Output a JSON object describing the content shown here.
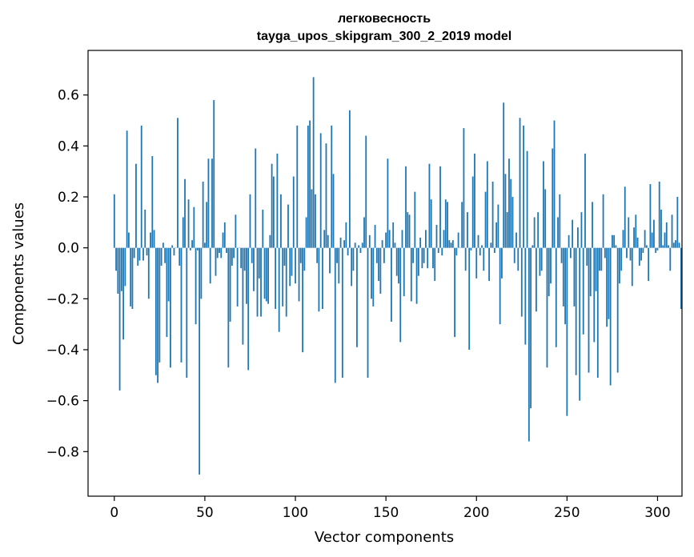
{
  "chart_data": {
    "type": "bar",
    "title": "легковесность",
    "subtitle": "tayga_upos_skipgram_300_2_2019 model",
    "xlabel": "Vector components",
    "ylabel": "Components values",
    "xlim": [
      -14.5,
      313.5
    ],
    "ylim": [
      -0.975,
      0.775
    ],
    "xticks": [
      0,
      50,
      100,
      150,
      200,
      250,
      300
    ],
    "xtick_labels": [
      "0",
      "50",
      "100",
      "150",
      "200",
      "250",
      "300"
    ],
    "yticks": [
      -0.8,
      -0.6,
      -0.4,
      -0.2,
      0.0,
      0.2,
      0.4,
      0.6
    ],
    "ytick_labels": [
      "−0.8",
      "−0.6",
      "−0.4",
      "−0.2",
      "0.0",
      "0.2",
      "0.4",
      "0.6"
    ],
    "bar_color": "#1f77b4",
    "grid": false,
    "values": [
      0.21,
      -0.09,
      -0.18,
      -0.56,
      -0.17,
      -0.36,
      -0.15,
      0.46,
      0.06,
      -0.23,
      -0.24,
      -0.04,
      0.33,
      -0.07,
      -0.05,
      0.48,
      -0.05,
      0.15,
      -0.03,
      -0.2,
      0.06,
      0.36,
      0.07,
      -0.5,
      -0.53,
      -0.45,
      -0.07,
      0.02,
      -0.06,
      -0.35,
      -0.21,
      -0.47,
      0.01,
      -0.03,
      0.0,
      0.51,
      -0.07,
      -0.45,
      0.12,
      0.27,
      -0.51,
      0.19,
      -0.01,
      0.03,
      0.16,
      -0.3,
      -0.01,
      -0.89,
      -0.2,
      0.26,
      0.02,
      0.18,
      0.35,
      -0.14,
      0.35,
      0.58,
      -0.11,
      -0.04,
      -0.02,
      -0.04,
      0.06,
      0.1,
      -0.02,
      -0.47,
      -0.29,
      -0.07,
      -0.04,
      0.13,
      -0.23,
      0.0,
      -0.08,
      -0.38,
      -0.09,
      -0.22,
      -0.48,
      0.21,
      -0.06,
      -0.17,
      0.39,
      -0.27,
      -0.12,
      -0.27,
      0.15,
      -0.2,
      -0.21,
      -0.22,
      0.05,
      0.33,
      0.28,
      -0.24,
      0.37,
      -0.33,
      0.21,
      -0.23,
      -0.07,
      -0.27,
      0.17,
      -0.15,
      -0.11,
      0.28,
      -0.14,
      0.48,
      -0.21,
      -0.06,
      -0.41,
      -0.09,
      0.12,
      0.48,
      0.5,
      0.23,
      0.67,
      0.21,
      -0.06,
      -0.25,
      0.45,
      -0.24,
      0.07,
      0.41,
      0.05,
      -0.1,
      0.48,
      0.29,
      -0.53,
      -0.06,
      -0.14,
      0.04,
      -0.51,
      0.03,
      0.1,
      -0.03,
      0.54,
      -0.15,
      -0.09,
      0.02,
      -0.39,
      0.01,
      -0.02,
      0.02,
      0.12,
      0.44,
      -0.51,
      0.05,
      -0.2,
      -0.23,
      0.09,
      -0.06,
      -0.13,
      -0.18,
      0.03,
      -0.06,
      0.06,
      0.35,
      0.07,
      -0.29,
      0.1,
      0.02,
      -0.11,
      -0.14,
      -0.37,
      0.07,
      -0.19,
      0.32,
      0.14,
      0.13,
      -0.21,
      -0.06,
      0.22,
      -0.22,
      -0.11,
      0.04,
      -0.08,
      -0.06,
      0.07,
      -0.08,
      0.33,
      0.19,
      -0.08,
      -0.13,
      0.09,
      -0.02,
      0.32,
      -0.03,
      0.07,
      0.19,
      0.18,
      0.03,
      0.02,
      0.03,
      -0.35,
      -0.03,
      0.06,
      0.0,
      0.18,
      0.47,
      -0.09,
      0.14,
      -0.4,
      -0.01,
      0.28,
      0.37,
      -0.12,
      0.05,
      -0.03,
      0.01,
      -0.09,
      0.22,
      0.34,
      -0.13,
      0.02,
      0.26,
      -0.02,
      0.1,
      0.17,
      -0.3,
      -0.12,
      0.57,
      0.29,
      0.14,
      0.35,
      0.27,
      0.2,
      -0.06,
      0.06,
      -0.09,
      0.51,
      -0.27,
      0.48,
      -0.38,
      0.38,
      -0.76,
      -0.63,
      0.01,
      0.12,
      -0.25,
      0.14,
      -0.11,
      -0.09,
      0.34,
      0.23,
      -0.47,
      -0.19,
      -0.14,
      0.39,
      0.5,
      -0.39,
      0.12,
      0.21,
      -0.06,
      -0.23,
      -0.3,
      -0.66,
      0.05,
      -0.04,
      0.11,
      -0.23,
      -0.5,
      0.08,
      -0.6,
      0.14,
      -0.34,
      0.37,
      -0.07,
      -0.49,
      -0.19,
      0.18,
      -0.37,
      -0.17,
      -0.51,
      -0.09,
      -0.09,
      0.21,
      -0.04,
      -0.31,
      -0.28,
      -0.54,
      0.05,
      0.05,
      0.01,
      -0.49,
      -0.14,
      -0.09,
      0.07,
      0.24,
      -0.04,
      0.12,
      -0.05,
      -0.15,
      0.08,
      0.13,
      0.04,
      -0.07,
      -0.05,
      -0.02,
      0.07,
      0.01,
      -0.13,
      0.25,
      0.06,
      0.11,
      -0.02,
      -0.01,
      0.26,
      0.15,
      0.01,
      0.06,
      0.1,
      0.01,
      -0.09,
      0.13,
      0.02,
      0.03,
      0.2,
      0.02,
      -0.24
    ]
  }
}
